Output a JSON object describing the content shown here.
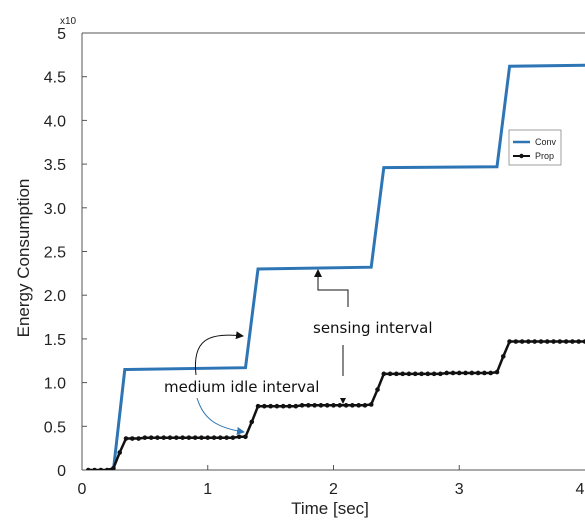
{
  "chart_data": {
    "type": "line",
    "title": "",
    "xlabel": "Time [sec]",
    "ylabel": "Energy Consumption",
    "y_exponent_label": "x10",
    "xlim": [
      0,
      4
    ],
    "ylim": [
      0,
      5
    ],
    "x_ticks": [
      "0",
      "1",
      "2",
      "3",
      "4"
    ],
    "y_ticks": [
      "0",
      "0.5",
      "1.0",
      "1.5",
      "2.0",
      "2.5",
      "3.0",
      "3.5",
      "4.0",
      "4.5",
      "5"
    ],
    "grid": false,
    "legend_position": "top-right",
    "series": [
      {
        "name": "Conv",
        "color": "#2e75b6",
        "marker": "none",
        "x": [
          0.25,
          0.34,
          1.3,
          1.4,
          2.3,
          2.4,
          3.3,
          3.4,
          4.0
        ],
        "y": [
          0,
          1.15,
          1.17,
          2.3,
          2.32,
          3.46,
          3.47,
          4.62,
          4.63
        ]
      },
      {
        "name": "Prop",
        "color": "#111111",
        "marker": "dot",
        "x": [
          0.05,
          0.1,
          0.15,
          0.2,
          0.25,
          0.3,
          0.35,
          0.4,
          0.45,
          0.5,
          0.55,
          0.6,
          0.65,
          0.7,
          0.75,
          0.8,
          0.85,
          0.9,
          0.95,
          1.0,
          1.05,
          1.1,
          1.15,
          1.2,
          1.25,
          1.3,
          1.35,
          1.4,
          1.45,
          1.5,
          1.55,
          1.6,
          1.65,
          1.7,
          1.75,
          1.8,
          1.85,
          1.9,
          1.95,
          2.0,
          2.05,
          2.1,
          2.15,
          2.2,
          2.25,
          2.3,
          2.35,
          2.4,
          2.45,
          2.5,
          2.55,
          2.6,
          2.65,
          2.7,
          2.75,
          2.8,
          2.85,
          2.9,
          2.95,
          3.0,
          3.05,
          3.1,
          3.15,
          3.2,
          3.25,
          3.3,
          3.35,
          3.4,
          3.45,
          3.5,
          3.55,
          3.6,
          3.65,
          3.7,
          3.75,
          3.8,
          3.85,
          3.9,
          3.95,
          4.0
        ],
        "y": [
          0,
          0,
          0,
          0,
          0.02,
          0.2,
          0.36,
          0.36,
          0.36,
          0.37,
          0.37,
          0.37,
          0.37,
          0.37,
          0.37,
          0.37,
          0.37,
          0.37,
          0.37,
          0.37,
          0.37,
          0.37,
          0.37,
          0.37,
          0.38,
          0.38,
          0.55,
          0.73,
          0.73,
          0.73,
          0.73,
          0.73,
          0.73,
          0.73,
          0.74,
          0.74,
          0.74,
          0.74,
          0.74,
          0.74,
          0.74,
          0.74,
          0.74,
          0.74,
          0.74,
          0.75,
          0.92,
          1.1,
          1.1,
          1.1,
          1.1,
          1.1,
          1.1,
          1.1,
          1.1,
          1.1,
          1.1,
          1.11,
          1.11,
          1.11,
          1.11,
          1.11,
          1.11,
          1.11,
          1.11,
          1.12,
          1.3,
          1.47,
          1.47,
          1.47,
          1.47,
          1.47,
          1.47,
          1.47,
          1.47,
          1.47,
          1.47,
          1.47,
          1.47,
          1.47
        ]
      }
    ],
    "annotations": [
      {
        "text": "sensing interval"
      },
      {
        "text": "medium idle interval"
      }
    ]
  }
}
